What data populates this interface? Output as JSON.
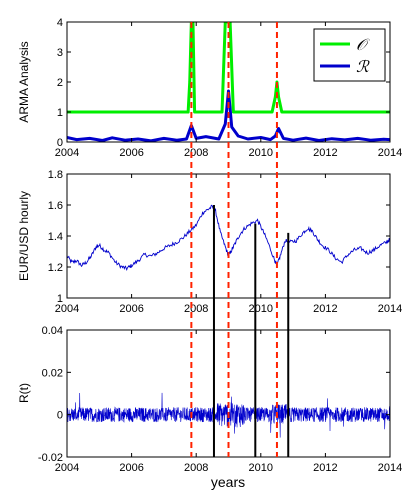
{
  "colors": {
    "green": "#00ee00",
    "blue": "#0000cc",
    "red": "#ff2200",
    "black": "#000000"
  },
  "chart_data": [
    {
      "type": "line",
      "ylabel": "ARMA Analysis",
      "xlim": [
        2004,
        2014
      ],
      "ylim": [
        0,
        4
      ],
      "xticks": [
        "2004",
        "2006",
        "2008",
        "2010",
        "2012",
        "2014"
      ],
      "yticks": [
        "0",
        "1",
        "2",
        "3",
        "4"
      ],
      "legend_placement": "top-right",
      "series": [
        {
          "name": "𝒪",
          "color": "green",
          "x": [
            2004,
            2007.75,
            2007.8,
            2007.85,
            2007.9,
            2007.95,
            2008.8,
            2008.9,
            2008.95,
            2009.0,
            2009.05,
            2009.15,
            2010.35,
            2010.45,
            2010.5,
            2010.55,
            2010.65,
            2014
          ],
          "y": [
            1,
            1,
            2,
            4,
            4,
            1,
            1,
            4,
            4,
            4,
            4,
            1,
            1,
            1.5,
            2,
            1.5,
            1,
            1
          ]
        },
        {
          "name": "ℛ",
          "color": "blue",
          "x": [
            2004,
            2004.3,
            2004.7,
            2005.1,
            2005.4,
            2005.8,
            2006.2,
            2006.6,
            2007.0,
            2007.4,
            2007.7,
            2007.85,
            2008.0,
            2008.3,
            2008.7,
            2008.9,
            2009.0,
            2009.1,
            2009.3,
            2009.6,
            2010.0,
            2010.3,
            2010.45,
            2010.55,
            2010.7,
            2011.0,
            2011.4,
            2011.8,
            2012.2,
            2012.6,
            2013.0,
            2013.4,
            2013.8,
            2014
          ],
          "y": [
            0.15,
            0.08,
            0.12,
            0.05,
            0.14,
            0.06,
            0.1,
            0.04,
            0.12,
            0.06,
            0.1,
            0.55,
            0.12,
            0.18,
            0.1,
            0.6,
            1.7,
            0.5,
            0.2,
            0.1,
            0.15,
            0.08,
            0.2,
            0.45,
            0.12,
            0.06,
            0.13,
            0.05,
            0.11,
            0.07,
            0.12,
            0.06,
            0.09,
            0.08
          ]
        }
      ]
    },
    {
      "type": "line",
      "ylabel": "EUR/USD hourly",
      "xlim": [
        2004,
        2014
      ],
      "ylim": [
        1,
        1.8
      ],
      "xticks": [
        "2004",
        "2006",
        "2008",
        "2010",
        "2012",
        "2014"
      ],
      "yticks": [
        "1",
        "1.2",
        "1.4",
        "1.6",
        "1.8"
      ],
      "series": [
        {
          "color": "blue",
          "x": [
            2004.0,
            2004.15,
            2004.3,
            2004.45,
            2004.6,
            2004.75,
            2004.9,
            2005.0,
            2005.15,
            2005.3,
            2005.5,
            2005.7,
            2005.85,
            2006.0,
            2006.2,
            2006.4,
            2006.6,
            2006.8,
            2007.0,
            2007.2,
            2007.4,
            2007.6,
            2007.8,
            2008.0,
            2008.2,
            2008.35,
            2008.5,
            2008.6,
            2008.75,
            2008.9,
            2009.0,
            2009.1,
            2009.2,
            2009.35,
            2009.5,
            2009.7,
            2009.9,
            2010.05,
            2010.2,
            2010.4,
            2010.5,
            2010.6,
            2010.75,
            2010.9,
            2011.1,
            2011.3,
            2011.45,
            2011.6,
            2011.75,
            2011.9,
            2012.1,
            2012.3,
            2012.5,
            2012.7,
            2012.9,
            2013.1,
            2013.3,
            2013.5,
            2013.7,
            2013.9,
            2014.0
          ],
          "y": [
            1.27,
            1.23,
            1.24,
            1.21,
            1.23,
            1.27,
            1.33,
            1.34,
            1.31,
            1.29,
            1.23,
            1.2,
            1.19,
            1.21,
            1.24,
            1.28,
            1.27,
            1.29,
            1.32,
            1.34,
            1.36,
            1.39,
            1.43,
            1.47,
            1.55,
            1.57,
            1.59,
            1.56,
            1.42,
            1.33,
            1.27,
            1.31,
            1.35,
            1.41,
            1.45,
            1.48,
            1.5,
            1.44,
            1.37,
            1.26,
            1.21,
            1.27,
            1.37,
            1.36,
            1.37,
            1.42,
            1.45,
            1.43,
            1.38,
            1.34,
            1.31,
            1.26,
            1.23,
            1.28,
            1.31,
            1.32,
            1.29,
            1.31,
            1.34,
            1.36,
            1.38
          ]
        }
      ]
    },
    {
      "type": "line",
      "ylabel": "R(t)",
      "xlabel": "years",
      "xlim": [
        2004,
        2014
      ],
      "ylim": [
        -0.02,
        0.04
      ],
      "xticks": [
        "2004",
        "2006",
        "2008",
        "2010",
        "2012",
        "2014"
      ],
      "yticks": [
        "-0.02",
        "0",
        "0.02",
        "0.04"
      ],
      "series": [
        {
          "color": "blue",
          "description_values": "hourly returns fluctuating around 0",
          "x": [
            2004,
            2014
          ],
          "y": [
            0,
            0
          ]
        }
      ]
    }
  ],
  "annotations": {
    "red_dashed_x": [
      2007.85,
      2009.0,
      2010.5
    ],
    "black_lines": [
      {
        "x": 2008.55,
        "y_top": 1.6
      },
      {
        "x": 2009.83,
        "y_top": 1.48
      },
      {
        "x": 2010.85,
        "y_top": 1.42
      }
    ]
  }
}
